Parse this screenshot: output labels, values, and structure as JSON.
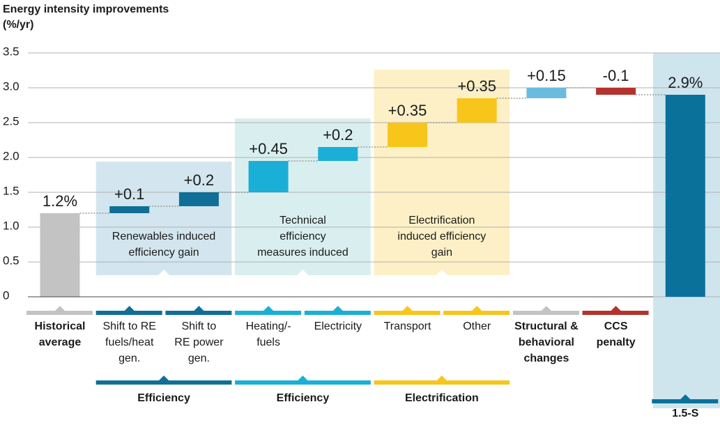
{
  "chart_data": {
    "type": "waterfall",
    "y_label": [
      "Energy intensity improvements",
      "(%/yr)"
    ],
    "categories": [
      [
        "Historical",
        "average"
      ],
      [
        "Shift to RE",
        "fuels/heat",
        "gen."
      ],
      [
        "Shift to",
        "RE power",
        "gen."
      ],
      [
        "Heating/-",
        "fuels"
      ],
      [
        "Electricity"
      ],
      [
        "Transport"
      ],
      [
        "Other"
      ],
      [
        "Structural &",
        "behavioral",
        "changes"
      ],
      [
        "CCS",
        "penalty"
      ],
      [
        "1.5-S"
      ]
    ],
    "category_bold": [
      true,
      false,
      false,
      false,
      false,
      false,
      false,
      true,
      true,
      true
    ],
    "values": [
      1.2,
      0.1,
      0.2,
      0.45,
      0.2,
      0.35,
      0.35,
      0.15,
      -0.1,
      2.9
    ],
    "value_labels": [
      "1.2%",
      "+0.1",
      "+0.2",
      "+0.45",
      "+0.2",
      "+0.35",
      "+0.35",
      "+0.15",
      "-0.1",
      "2.9%"
    ],
    "measure": [
      "absolute",
      "relative",
      "relative",
      "relative",
      "relative",
      "relative",
      "relative",
      "relative",
      "relative",
      "total"
    ],
    "colors": [
      "#c3c3c3",
      "#0f6f97",
      "#0f6f97",
      "#1aafd6",
      "#1aafd6",
      "#f8c51b",
      "#f8c51b",
      "#6bbbdf",
      "#b5322d",
      "#0a729a"
    ],
    "band_colors": [
      "#c3c3c3",
      "#0f6f97",
      "#0f6f97",
      "#1aafd6",
      "#1aafd6",
      "#f8c51b",
      "#f8c51b",
      "#c3c3c3",
      "#b5322d",
      "#0a729a"
    ],
    "ylim": [
      0,
      3.5
    ],
    "yticks": [
      0,
      0.5,
      {
        "value": 1,
        "label": "1.0"
      },
      1.5,
      {
        "value": 2,
        "label": "2.0"
      },
      2.5,
      {
        "value": 3,
        "label": "3.0"
      },
      3.5
    ],
    "grid": true,
    "boxes": [
      {
        "lines": [
          "Renewables induced",
          "efficiency gain"
        ],
        "from": 1,
        "to": 2,
        "color": "#d3e6ef"
      },
      {
        "lines": [
          "Technical",
          "efficiency",
          "measures induced"
        ],
        "from": 3,
        "to": 4,
        "color": "#d9efef"
      },
      {
        "lines": [
          "Electrification",
          "induced efficiency",
          "gain"
        ],
        "from": 5,
        "to": 6,
        "color": "#fdf0c6"
      }
    ],
    "groups": [
      {
        "label": "Efficiency",
        "from": 1,
        "to": 2,
        "color": "#0f6f97"
      },
      {
        "label": "Efficiency",
        "from": 3,
        "to": 4,
        "color": "#1aafd6"
      },
      {
        "label": "Electrification",
        "from": 5,
        "to": 6,
        "color": "#f8c51b"
      }
    ]
  }
}
